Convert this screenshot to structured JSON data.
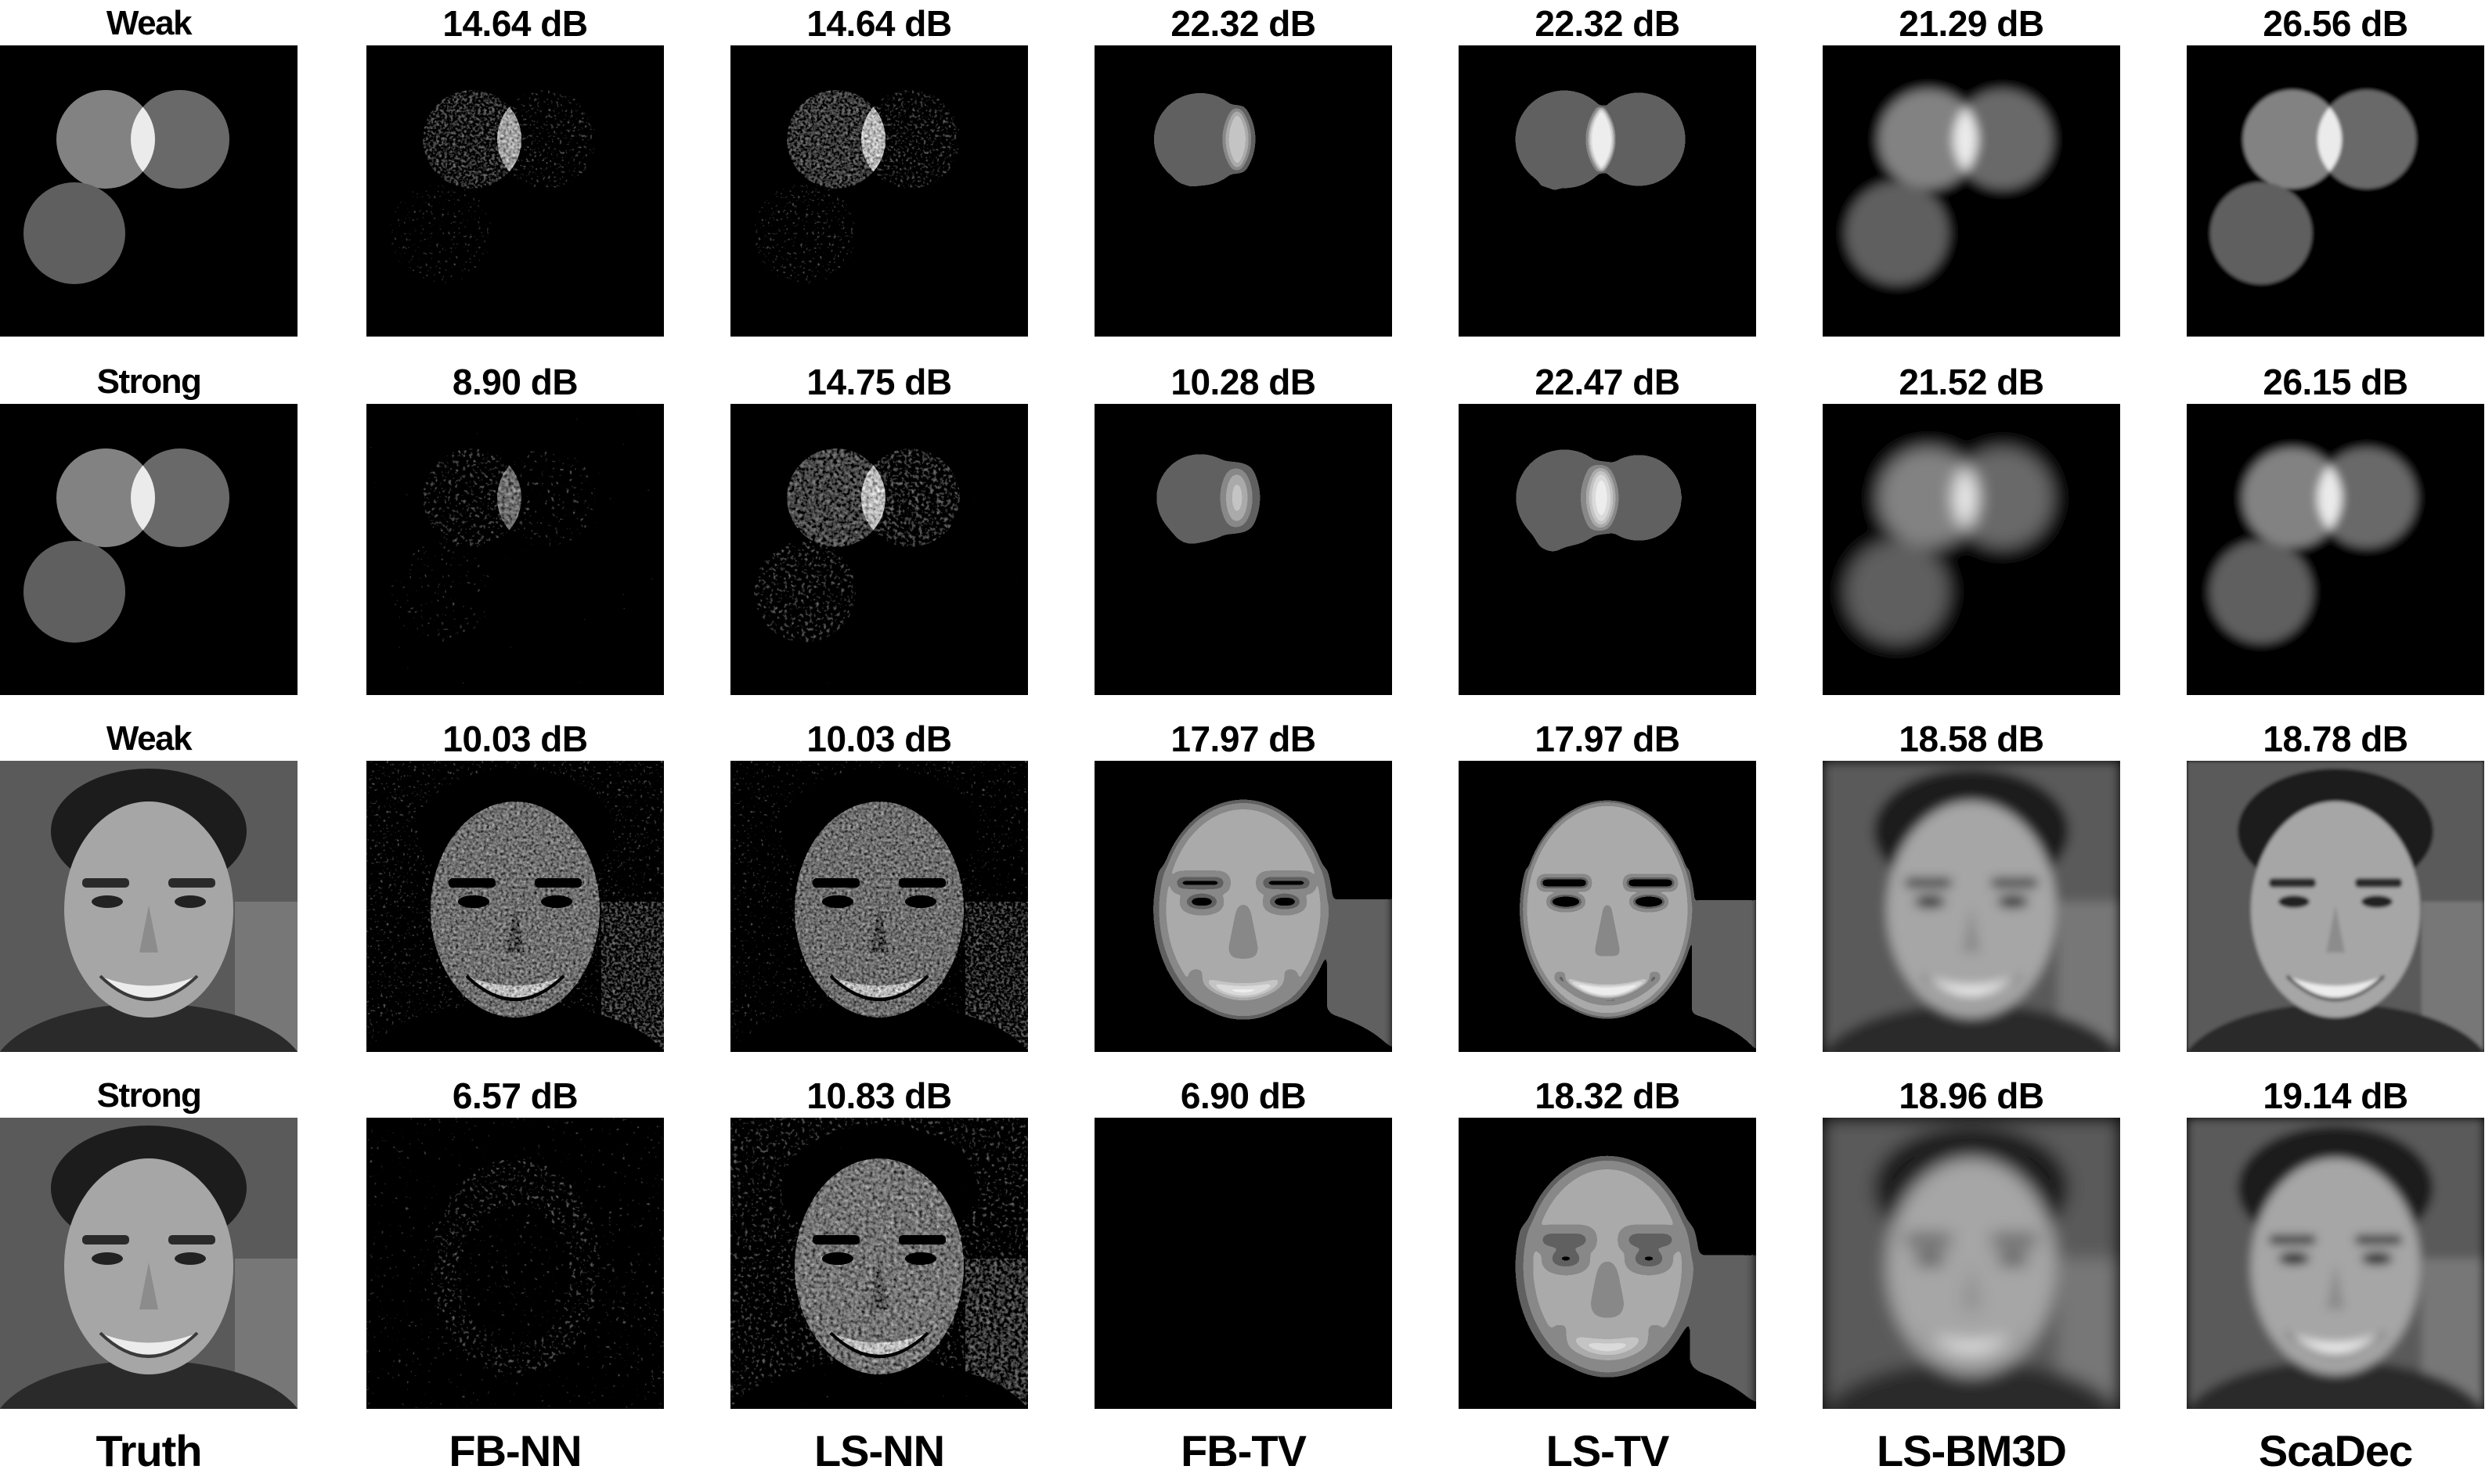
{
  "columns": [
    "Truth",
    "FB-NN",
    "LS-NN",
    "FB-TV",
    "LS-TV",
    "LS-BM3D",
    "ScaDec"
  ],
  "rows": [
    {
      "image": "circles",
      "labels": [
        "Weak",
        "14.64 dB",
        "14.64 dB",
        "22.32 dB",
        "22.32 dB",
        "21.29 dB",
        "26.56 dB"
      ]
    },
    {
      "image": "circles",
      "labels": [
        "Strong",
        "8.90 dB",
        "14.75 dB",
        "10.28 dB",
        "22.47 dB",
        "21.52 dB",
        "26.15 dB"
      ]
    },
    {
      "image": "face",
      "labels": [
        "Weak",
        "10.03 dB",
        "10.03 dB",
        "17.97 dB",
        "17.97 dB",
        "18.58 dB",
        "18.78 dB"
      ]
    },
    {
      "image": "face",
      "labels": [
        "Strong",
        "6.57 dB",
        "10.83 dB",
        "6.90 dB",
        "18.32 dB",
        "18.96 dB",
        "19.14 dB"
      ]
    }
  ]
}
